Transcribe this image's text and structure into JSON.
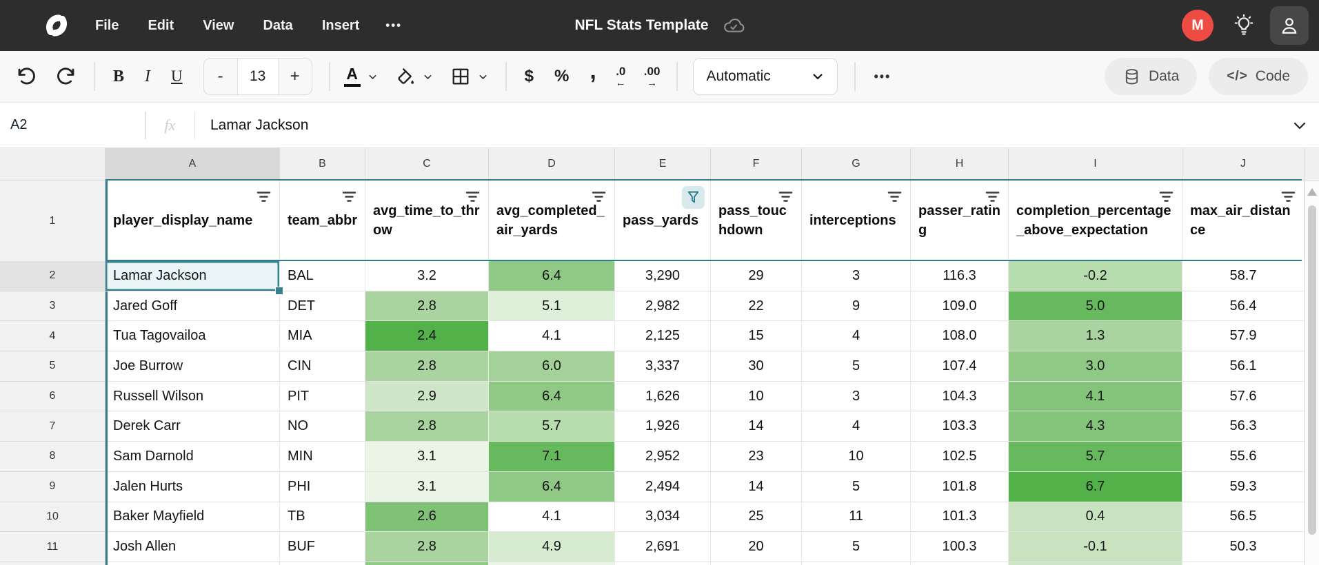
{
  "topbar": {
    "menus": [
      "File",
      "Edit",
      "View",
      "Data",
      "Insert"
    ],
    "more": "•••",
    "title": "NFL Stats Template",
    "avatar_initial": "M"
  },
  "toolbar": {
    "minus": "-",
    "font_size": "13",
    "plus": "+",
    "text_color": "A",
    "currency": "$",
    "percent": "%",
    "comma": ",",
    "dec_decrease": ".0",
    "dec_decrease_arrow": "←",
    "dec_increase": ".00",
    "dec_increase_arrow": "→",
    "format": "Automatic",
    "more": "•••",
    "data_label": "Data",
    "code_icon": "</>",
    "code_label": "Code"
  },
  "formula_bar": {
    "cell_ref": "A2",
    "fx_label": "fx",
    "value": "Lamar Jackson"
  },
  "colors": {
    "accent_teal": "#37808d",
    "table_border_teal": "#2f7d8a",
    "selection_fill": "#eaf5f8",
    "filter_active_bg": "#d7e9ec",
    "filter_active_icon": "#2f7d8a",
    "avatar_red": "#ef4b45"
  },
  "sheet": {
    "column_letters": [
      "A",
      "B",
      "C",
      "D",
      "E",
      "F",
      "G",
      "H",
      "I",
      "J"
    ],
    "header_row_number": "1",
    "selection": {
      "cell": "A2",
      "row": 2,
      "col": 0
    },
    "columns": [
      {
        "label": "player_display_name",
        "filtered": false
      },
      {
        "label": "team_abbr",
        "filtered": false
      },
      {
        "label": "avg_time_to_throw",
        "filtered": false
      },
      {
        "label": "avg_completed_air_yards",
        "filtered": false
      },
      {
        "label": "pass_yards",
        "filtered": true
      },
      {
        "label": "pass_touchdown",
        "filtered": false
      },
      {
        "label": "interceptions",
        "filtered": false
      },
      {
        "label": "passer_rating",
        "filtered": false
      },
      {
        "label": "completion_percentage_above_expectation",
        "filtered": false
      },
      {
        "label": "max_air_distance",
        "filtered": false
      }
    ],
    "rows": [
      {
        "num": 2,
        "cells": [
          "Lamar Jackson",
          "BAL",
          "3.2",
          "6.4",
          "3,290",
          "29",
          "3",
          "116.3",
          "-0.2",
          "58.7"
        ],
        "fills": {
          "3": "#8fc985",
          "8": "#b7dcae"
        }
      },
      {
        "num": 3,
        "cells": [
          "Jared Goff",
          "DET",
          "2.8",
          "5.1",
          "2,982",
          "22",
          "9",
          "109.0",
          "5.0",
          "56.4"
        ],
        "fills": {
          "2": "#a9d4a0",
          "3": "#def0d9",
          "8": "#67b95d"
        }
      },
      {
        "num": 4,
        "cells": [
          "Tua Tagovailoa",
          "MIA",
          "2.4",
          "4.1",
          "2,125",
          "15",
          "4",
          "108.0",
          "1.3",
          "57.9"
        ],
        "fills": {
          "2": "#53b149",
          "8": "#a9d4a0"
        }
      },
      {
        "num": 5,
        "cells": [
          "Joe Burrow",
          "CIN",
          "2.8",
          "6.0",
          "3,337",
          "30",
          "5",
          "107.4",
          "3.0",
          "56.1"
        ],
        "fills": {
          "2": "#a9d4a0",
          "3": "#a4d19a",
          "8": "#8fc985"
        }
      },
      {
        "num": 6,
        "cells": [
          "Russell Wilson",
          "PIT",
          "2.9",
          "6.4",
          "1,626",
          "10",
          "3",
          "104.3",
          "4.1",
          "57.6"
        ],
        "fills": {
          "2": "#cee6c7",
          "3": "#8fc985",
          "8": "#84c47a"
        }
      },
      {
        "num": 7,
        "cells": [
          "Derek Carr",
          "NO",
          "2.8",
          "5.7",
          "1,926",
          "14",
          "4",
          "103.3",
          "4.3",
          "56.3"
        ],
        "fills": {
          "2": "#a9d4a0",
          "3": "#b7dcae",
          "8": "#84c47a"
        }
      },
      {
        "num": 8,
        "cells": [
          "Sam Darnold",
          "MIN",
          "3.1",
          "7.1",
          "2,952",
          "23",
          "10",
          "102.5",
          "5.7",
          "55.6"
        ],
        "fills": {
          "2": "#eaf5e6",
          "3": "#67b95d",
          "8": "#67b95d"
        }
      },
      {
        "num": 9,
        "cells": [
          "Jalen Hurts",
          "PHI",
          "3.1",
          "6.4",
          "2,494",
          "14",
          "5",
          "101.8",
          "6.7",
          "59.3"
        ],
        "fills": {
          "2": "#eaf5e6",
          "3": "#8fc985",
          "8": "#53b149"
        }
      },
      {
        "num": 10,
        "cells": [
          "Baker Mayfield",
          "TB",
          "2.6",
          "4.1",
          "3,034",
          "25",
          "11",
          "101.3",
          "0.4",
          "56.5"
        ],
        "fills": {
          "2": "#7fc275",
          "8": "#c9e3c1"
        }
      },
      {
        "num": 11,
        "cells": [
          "Josh Allen",
          "BUF",
          "2.8",
          "4.9",
          "2,691",
          "20",
          "5",
          "100.3",
          "-0.1",
          "50.3"
        ],
        "fills": {
          "2": "#a9d4a0",
          "3": "#d6ebd0",
          "8": "#c9e3c1"
        }
      }
    ],
    "partial_row_fills": {
      "2": "#8fc985",
      "3": "#eaf5e6",
      "8": "#cee6c7"
    }
  }
}
